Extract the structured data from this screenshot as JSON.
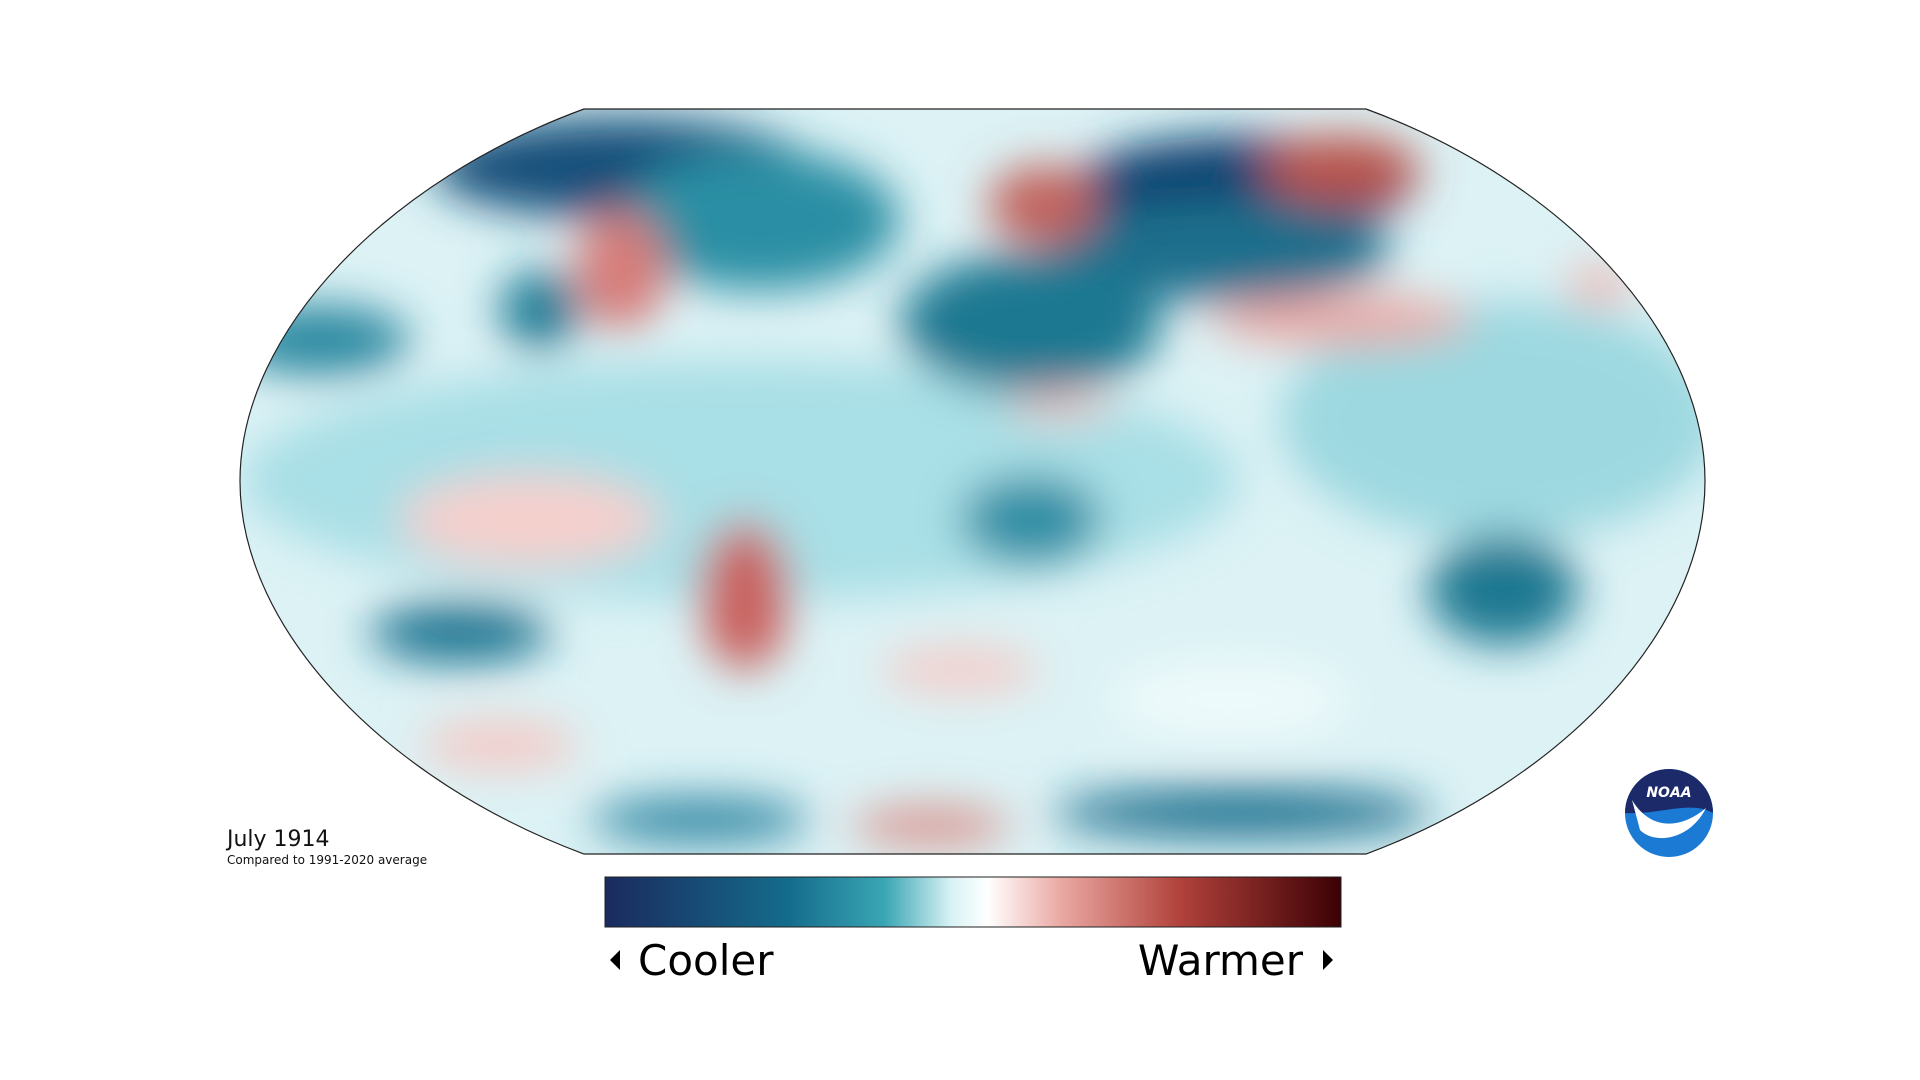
{
  "title": "July 1914",
  "subtitle": "Compared to 1991-2020 average",
  "legend": {
    "low": "Cooler",
    "high": "Warmer"
  },
  "logo": "NOAA"
}
